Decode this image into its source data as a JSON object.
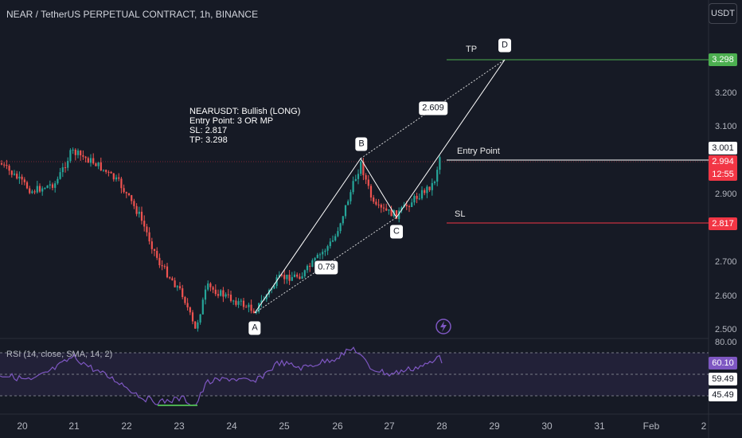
{
  "header": {
    "title": "NEAR / TetherUS PERPETUAL CONTRACT, 1h, BINANCE",
    "currency": "USDT"
  },
  "price_axis": {
    "labels": [
      "3.200",
      "3.100",
      "2.900",
      "2.700",
      "2.600",
      "2.500"
    ],
    "tp_tag": "3.298",
    "last_tag": "3.001",
    "current_tag": "2.994",
    "countdown": "12:55",
    "sl_tag": "2.817"
  },
  "rsi": {
    "title": "RSI (14, close, SMA, 14, 2)",
    "axis_top": "80.00",
    "value_tag": "60.10",
    "sma_tag": "59.49",
    "low_tag": "45.49"
  },
  "time_axis": {
    "labels": [
      "20",
      "21",
      "22",
      "23",
      "24",
      "25",
      "26",
      "27",
      "28",
      "29",
      "30",
      "31",
      "Feb",
      "2"
    ]
  },
  "annotations": {
    "tp_label": "TP",
    "entry_label": "Entry Point",
    "sl_label": "SL",
    "ratio_bd": "2.609",
    "ratio_abc": "0.79",
    "point_a": "A",
    "point_b": "B",
    "point_c": "C",
    "point_d": "D",
    "note": {
      "line1": "NEARUSDT: Bullish (LONG)",
      "line2": "Entry Point: 3 OR MP",
      "line3": "SL: 2.817",
      "line4": "TP: 3.298"
    }
  },
  "colors": {
    "background": "#161a25",
    "up": "#26a69a",
    "down": "#ef5350",
    "tp": "#4caf50",
    "sl": "#f23645",
    "rsi": "#7e57c2"
  }
}
